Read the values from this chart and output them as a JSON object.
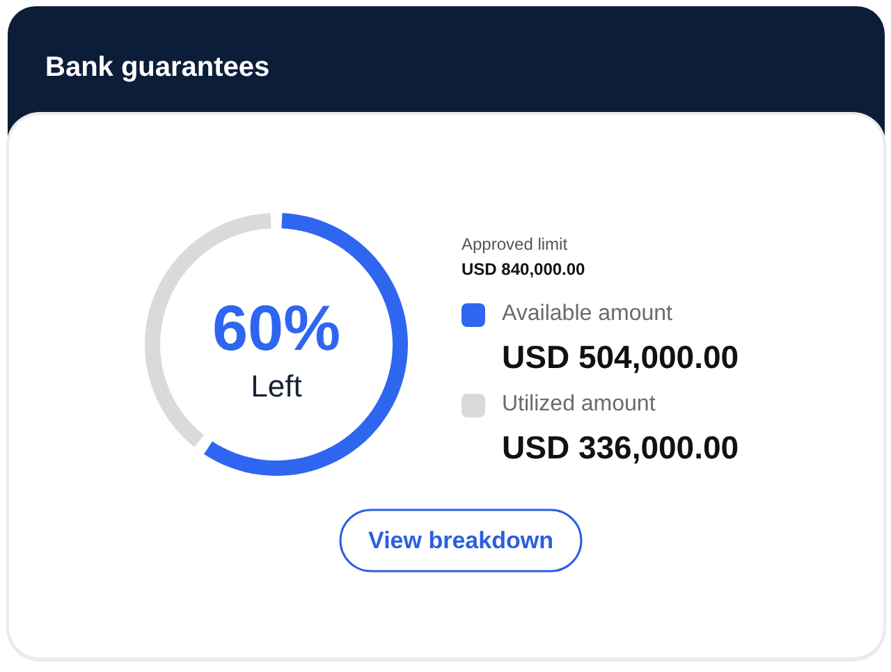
{
  "chart_data": {
    "type": "donut",
    "title": "Bank guarantees",
    "categories": [
      "Available amount",
      "Utilized amount"
    ],
    "values": [
      504000,
      336000
    ],
    "colors": [
      "#2f66f0",
      "#dadada"
    ],
    "value_labels": [
      "USD 504,000.00",
      "USD 336,000.00"
    ],
    "legend": "right",
    "annotations": [
      "60%",
      "Left",
      "Approved limit",
      "USD 840,000.00",
      "View breakdown"
    ]
  }
}
